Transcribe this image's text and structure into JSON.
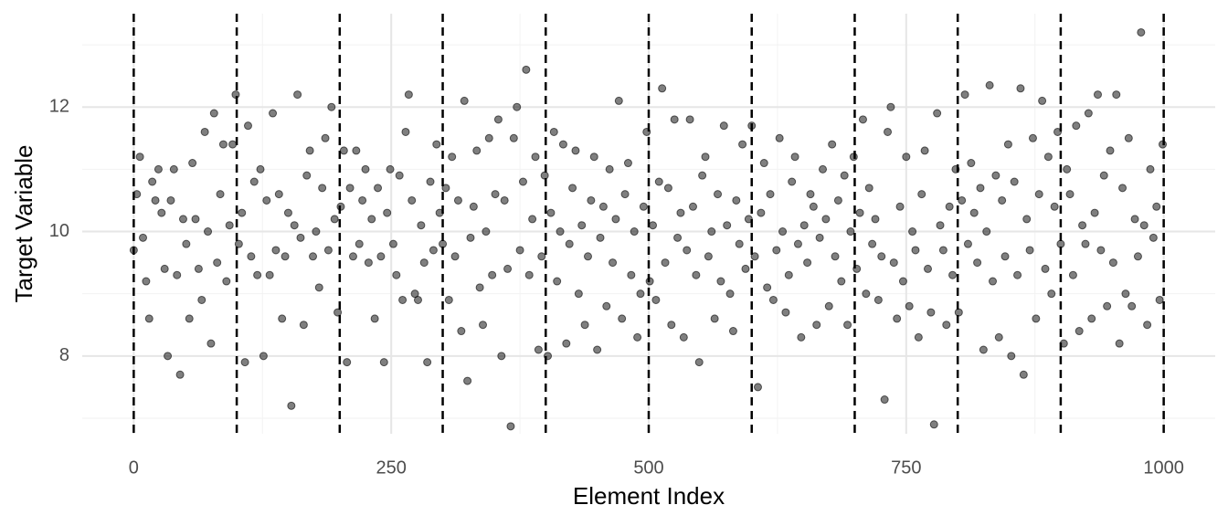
{
  "chart_data": {
    "type": "scatter",
    "x_label": "Element Index",
    "y_label": "Target Variable",
    "xlim": [
      -50,
      1050
    ],
    "ylim": [
      6.75,
      13.5
    ],
    "xticks": [
      0,
      250,
      500,
      750,
      1000
    ],
    "yticks": [
      8,
      10,
      12
    ],
    "xminor": [
      125,
      375,
      625,
      875
    ],
    "yminor": [
      7,
      9,
      11,
      13
    ],
    "grid": true,
    "color": "#000000",
    "vlines": [
      0,
      100,
      200,
      300,
      400,
      500,
      600,
      700,
      800,
      900,
      1000
    ],
    "x": [
      0,
      3,
      6,
      9,
      12,
      15,
      18,
      21,
      24,
      27,
      30,
      33,
      36,
      39,
      42,
      45,
      48,
      51,
      54,
      57,
      60,
      63,
      66,
      69,
      72,
      75,
      78,
      81,
      84,
      87,
      90,
      93,
      96,
      99,
      102,
      105,
      108,
      111,
      114,
      117,
      120,
      123,
      126,
      129,
      132,
      135,
      138,
      141,
      144,
      147,
      150,
      153,
      156,
      159,
      162,
      165,
      168,
      171,
      174,
      177,
      180,
      183,
      186,
      189,
      192,
      195,
      198,
      201,
      204,
      207,
      210,
      213,
      216,
      219,
      222,
      225,
      228,
      231,
      234,
      237,
      240,
      243,
      246,
      249,
      252,
      255,
      258,
      261,
      264,
      267,
      270,
      273,
      276,
      279,
      282,
      285,
      288,
      291,
      294,
      297,
      300,
      303,
      306,
      309,
      312,
      315,
      318,
      321,
      324,
      327,
      330,
      333,
      336,
      339,
      342,
      345,
      348,
      351,
      354,
      357,
      360,
      363,
      366,
      369,
      372,
      375,
      378,
      381,
      384,
      387,
      390,
      393,
      396,
      399,
      402,
      405,
      408,
      411,
      414,
      417,
      420,
      423,
      426,
      429,
      432,
      435,
      438,
      441,
      444,
      447,
      450,
      453,
      456,
      459,
      462,
      465,
      468,
      471,
      474,
      477,
      480,
      483,
      486,
      489,
      492,
      495,
      498,
      501,
      504,
      507,
      510,
      513,
      516,
      519,
      522,
      525,
      528,
      531,
      534,
      537,
      540,
      543,
      546,
      549,
      552,
      555,
      558,
      561,
      564,
      567,
      570,
      573,
      576,
      579,
      582,
      585,
      588,
      591,
      594,
      597,
      600,
      603,
      606,
      609,
      612,
      615,
      618,
      621,
      624,
      627,
      630,
      633,
      636,
      639,
      642,
      645,
      648,
      651,
      654,
      657,
      660,
      663,
      666,
      669,
      672,
      675,
      678,
      681,
      684,
      687,
      690,
      693,
      696,
      699,
      702,
      705,
      708,
      711,
      714,
      717,
      720,
      723,
      726,
      729,
      732,
      735,
      738,
      741,
      744,
      747,
      750,
      753,
      756,
      759,
      762,
      765,
      768,
      771,
      774,
      777,
      780,
      783,
      786,
      789,
      792,
      795,
      798,
      801,
      804,
      807,
      810,
      813,
      816,
      819,
      822,
      825,
      828,
      831,
      834,
      837,
      840,
      843,
      846,
      849,
      852,
      855,
      858,
      861,
      864,
      867,
      870,
      873,
      876,
      879,
      882,
      885,
      888,
      891,
      894,
      897,
      900,
      903,
      906,
      909,
      912,
      915,
      918,
      921,
      924,
      927,
      930,
      933,
      936,
      939,
      942,
      945,
      948,
      951,
      954,
      957,
      960,
      963,
      966,
      969,
      972,
      975,
      978,
      981,
      984,
      987,
      990,
      993,
      996,
      999
    ],
    "values": [
      9.7,
      10.6,
      11.2,
      9.9,
      9.2,
      8.6,
      10.8,
      10.5,
      11.0,
      10.3,
      9.4,
      8.0,
      10.5,
      11.0,
      9.3,
      7.7,
      10.2,
      9.8,
      8.6,
      11.1,
      10.2,
      9.4,
      8.9,
      11.6,
      10.0,
      8.2,
      11.9,
      9.5,
      10.6,
      11.4,
      9.2,
      10.1,
      11.4,
      12.2,
      9.8,
      10.3,
      7.9,
      11.7,
      9.6,
      10.8,
      9.3,
      11.0,
      8.0,
      10.5,
      9.3,
      11.9,
      9.7,
      10.6,
      8.6,
      9.6,
      10.3,
      7.2,
      10.1,
      12.2,
      9.9,
      8.5,
      10.9,
      11.3,
      9.6,
      10.0,
      9.1,
      10.7,
      11.5,
      9.7,
      12.0,
      10.2,
      8.7,
      10.4,
      11.3,
      7.9,
      10.7,
      9.6,
      11.3,
      9.8,
      10.5,
      11.0,
      9.5,
      10.2,
      8.6,
      10.7,
      9.6,
      7.9,
      10.3,
      11.0,
      9.8,
      9.3,
      10.9,
      8.9,
      11.6,
      12.2,
      10.5,
      9.0,
      8.9,
      10.1,
      9.5,
      7.9,
      10.8,
      9.7,
      11.4,
      10.3,
      9.8,
      10.7,
      8.9,
      11.2,
      9.6,
      10.5,
      8.4,
      12.1,
      7.6,
      9.9,
      10.4,
      11.3,
      9.1,
      8.5,
      10.0,
      11.5,
      9.3,
      10.6,
      11.8,
      8.0,
      10.5,
      9.4,
      6.87,
      11.5,
      12.0,
      9.7,
      10.8,
      12.6,
      9.3,
      10.2,
      11.2,
      8.1,
      9.6,
      10.9,
      8.0,
      10.3,
      11.6,
      9.2,
      10.0,
      11.4,
      8.2,
      9.8,
      10.7,
      11.3,
      9.0,
      10.1,
      8.5,
      9.6,
      10.5,
      11.2,
      8.1,
      9.9,
      10.4,
      8.8,
      11.0,
      9.5,
      10.2,
      12.1,
      8.6,
      10.6,
      11.1,
      9.3,
      10.0,
      8.3,
      9.0,
      10.4,
      11.6,
      9.2,
      10.1,
      8.9,
      10.8,
      12.3,
      9.5,
      10.7,
      8.5,
      11.8,
      9.9,
      10.3,
      8.3,
      9.7,
      11.8,
      10.4,
      9.3,
      7.9,
      10.9,
      11.2,
      9.6,
      10.0,
      8.6,
      10.6,
      9.2,
      11.7,
      10.1,
      9.0,
      8.4,
      10.5,
      9.8,
      11.4,
      9.4,
      10.2,
      11.7,
      9.6,
      7.5,
      10.3,
      11.1,
      9.1,
      10.6,
      8.9,
      9.7,
      11.5,
      10.0,
      8.7,
      9.3,
      10.8,
      11.2,
      9.8,
      8.3,
      10.1,
      9.5,
      10.6,
      10.4,
      8.5,
      9.9,
      11.0,
      10.2,
      8.8,
      11.4,
      9.6,
      10.5,
      9.2,
      10.9,
      8.5,
      10.0,
      11.2,
      9.4,
      10.3,
      11.8,
      9.0,
      10.7,
      9.8,
      10.2,
      8.9,
      9.6,
      7.3,
      11.6,
      12.0,
      9.5,
      8.6,
      10.4,
      9.2,
      11.2,
      8.8,
      10.0,
      9.7,
      8.3,
      10.6,
      11.3,
      9.4,
      8.7,
      6.9,
      11.9,
      10.1,
      9.7,
      8.5,
      10.4,
      9.3,
      11.0,
      8.7,
      10.5,
      12.2,
      9.8,
      11.1,
      10.3,
      9.5,
      10.7,
      8.1,
      10.0,
      12.35,
      9.2,
      10.9,
      8.3,
      10.5,
      9.6,
      11.4,
      8.0,
      10.8,
      9.3,
      12.3,
      7.7,
      10.2,
      9.7,
      11.5,
      8.6,
      10.6,
      12.1,
      9.4,
      11.2,
      9.0,
      10.4,
      11.6,
      9.8,
      8.2,
      11.0,
      10.6,
      9.3,
      11.7,
      8.4,
      10.1,
      9.8,
      11.9,
      8.6,
      10.3,
      12.2,
      9.7,
      10.9,
      8.8,
      11.3,
      9.5,
      12.2,
      8.2,
      10.7,
      9.0,
      11.5,
      8.8,
      10.2,
      9.6,
      13.2,
      10.1,
      8.5,
      11.0,
      9.9,
      10.4,
      8.9,
      11.4
    ]
  }
}
